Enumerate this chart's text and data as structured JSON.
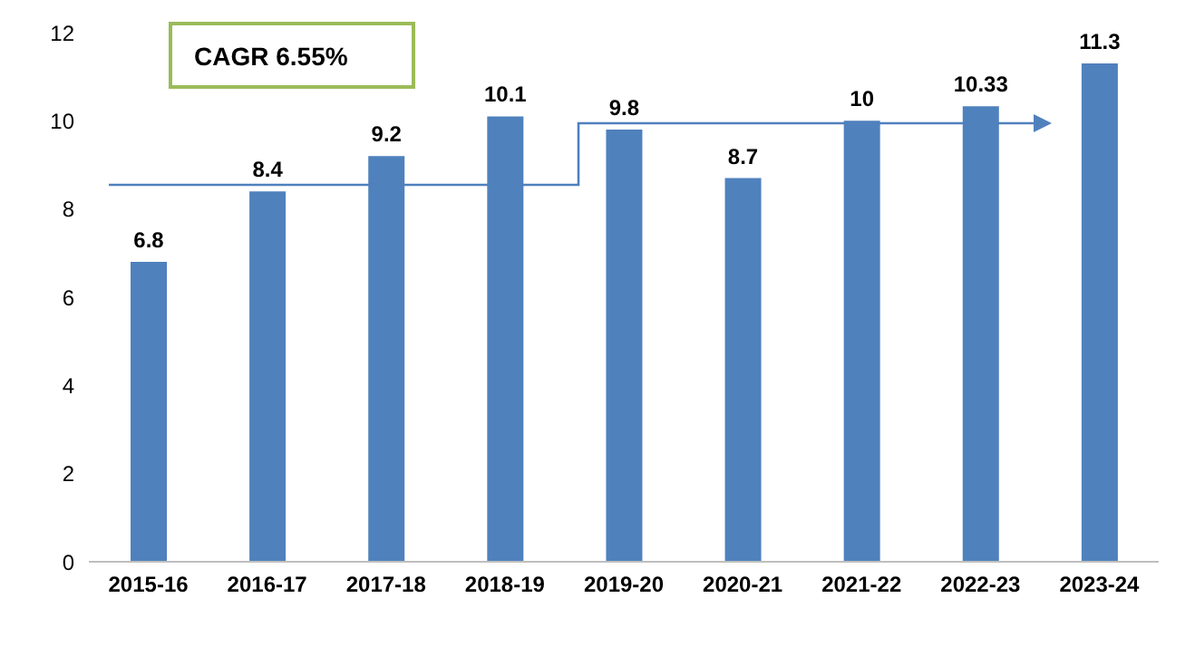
{
  "chart_data": {
    "type": "bar",
    "categories": [
      "2015-16",
      "2016-17",
      "2017-18",
      "2018-19",
      "2019-20",
      "2020-21",
      "2021-22",
      "2022-23",
      "2023-24"
    ],
    "values": [
      6.8,
      8.4,
      9.2,
      10.1,
      9.8,
      8.7,
      10,
      10.33,
      11.3
    ],
    "color": "#4f81bd",
    "ylim": [
      0,
      12
    ],
    "yticks": [
      0,
      2,
      4,
      6,
      8,
      10,
      12
    ],
    "grid": false,
    "data_labels": true,
    "legend": false,
    "annotations": [
      "CAGR 6.55%"
    ]
  }
}
